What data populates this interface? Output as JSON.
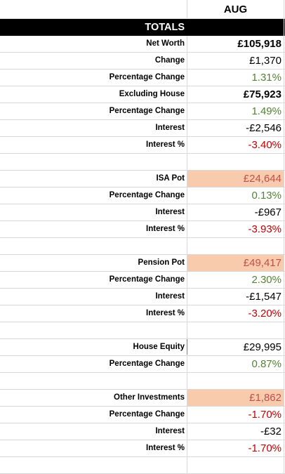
{
  "sheet": {
    "month_header": "AUG",
    "section_title": "TOTALS",
    "rows": [
      {
        "label": "Net Worth",
        "value": "£105,918",
        "style": "bold"
      },
      {
        "label": "Change",
        "value": "£1,370",
        "style": "plain"
      },
      {
        "label": "Percentage Change",
        "value": "1.31%",
        "style": "green"
      },
      {
        "label": "Excluding House",
        "value": "£75,923",
        "style": "bold"
      },
      {
        "label": "Percentage Change",
        "value": "1.49%",
        "style": "green"
      },
      {
        "label": "Interest",
        "value": "-£2,546",
        "style": "plain"
      },
      {
        "label": "Interest %",
        "value": "-3.40%",
        "style": "red"
      },
      {
        "label": "",
        "value": "",
        "style": "blank"
      },
      {
        "label": "ISA Pot",
        "value": "£24,644",
        "style": "peach"
      },
      {
        "label": "Percentage Change",
        "value": "0.13%",
        "style": "green"
      },
      {
        "label": "Interest",
        "value": "-£967",
        "style": "plain"
      },
      {
        "label": "Interest %",
        "value": "-3.93%",
        "style": "red"
      },
      {
        "label": "",
        "value": "",
        "style": "blank"
      },
      {
        "label": "Pension Pot",
        "value": "£49,417",
        "style": "peach"
      },
      {
        "label": "Percentage Change",
        "value": "2.30%",
        "style": "green"
      },
      {
        "label": "Interest",
        "value": "-£1,547",
        "style": "plain"
      },
      {
        "label": "Interest %",
        "value": "-3.20%",
        "style": "red"
      },
      {
        "label": "",
        "value": "",
        "style": "blank"
      },
      {
        "label": "House Equity",
        "value": "£29,995",
        "style": "plain"
      },
      {
        "label": "Percentage Change",
        "value": "0.87%",
        "style": "green"
      },
      {
        "label": "",
        "value": "",
        "style": "blank"
      },
      {
        "label": "Other Investments",
        "value": "£1,862",
        "style": "peach"
      },
      {
        "label": "Percentage Change",
        "value": "-1.70%",
        "style": "red"
      },
      {
        "label": "Interest",
        "value": "-£32",
        "style": "plain"
      },
      {
        "label": "Interest %",
        "value": "-1.70%",
        "style": "red"
      },
      {
        "label": "",
        "value": "",
        "style": "blank"
      }
    ]
  },
  "colors": {
    "header_bar": "#000000",
    "positive": "#548235",
    "negative": "#c00000",
    "highlight": "#f8cbad",
    "gridline": "#d9d9d9"
  }
}
